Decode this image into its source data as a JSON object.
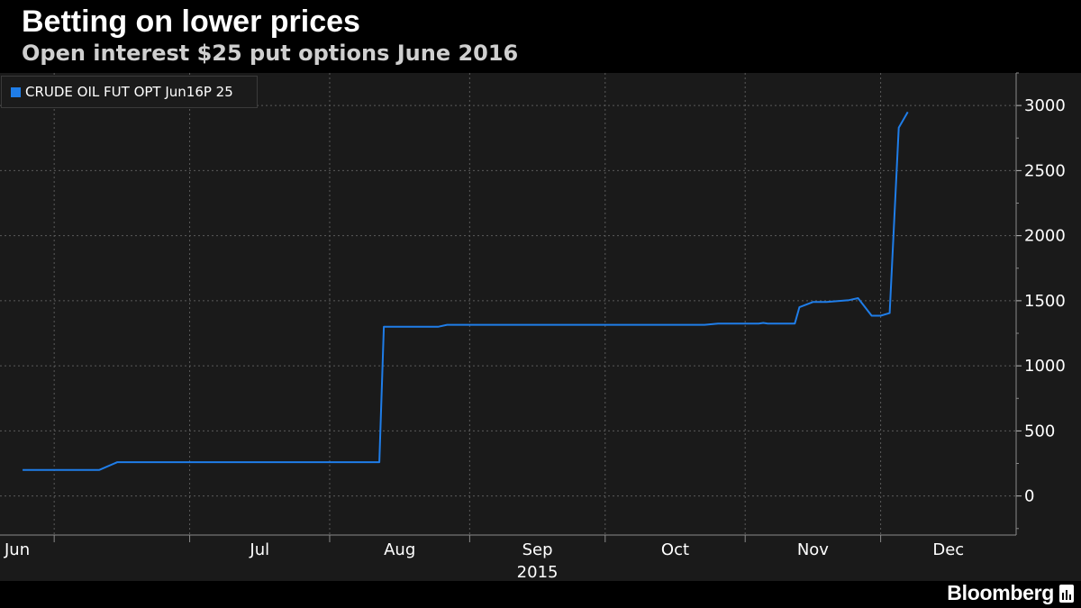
{
  "title": "Betting on lower prices",
  "subtitle": "Open interest $25 put options June 2016",
  "brand": "Bloomberg",
  "icons": {
    "brand": "bloomberg-terminal-icon"
  },
  "colors": {
    "background": "#000000",
    "plot_background": "#1a1a1a",
    "series": "#1f7de8",
    "grid": "#5a5a5a",
    "text": "#ffffff"
  },
  "chart_data": {
    "type": "line",
    "title": "Betting on lower prices",
    "subtitle": "Open interest $25 put options June 2016",
    "xlabel": "",
    "ylabel": "",
    "x_range": [
      "2015-05-20",
      "2015-12-31"
    ],
    "x_ticks": [
      {
        "label": "Jun",
        "date": "2015-06-01"
      },
      {
        "label": "Jul",
        "date": "2015-07-01"
      },
      {
        "label": "Aug",
        "date": "2015-08-01"
      },
      {
        "label": "Sep",
        "date": "2015-09-01"
      },
      {
        "label": "Oct",
        "date": "2015-10-01"
      },
      {
        "label": "Nov",
        "date": "2015-11-01"
      },
      {
        "label": "Dec",
        "date": "2015-12-01"
      }
    ],
    "year_label": "2015",
    "ylim": [
      -300,
      3250
    ],
    "y_ticks": [
      0,
      500,
      1000,
      1500,
      2000,
      2500,
      3000
    ],
    "y_axis_side": "right",
    "grid": true,
    "legend_position": "top-left",
    "series": [
      {
        "name": "CRUDE OIL FUT OPT Jun16P 25",
        "color": "#1f7de8",
        "points": [
          {
            "x": "2015-05-25",
            "y": 200
          },
          {
            "x": "2015-06-11",
            "y": 200
          },
          {
            "x": "2015-06-15",
            "y": 260
          },
          {
            "x": "2015-08-12",
            "y": 260
          },
          {
            "x": "2015-08-13",
            "y": 1300
          },
          {
            "x": "2015-08-25",
            "y": 1300
          },
          {
            "x": "2015-08-27",
            "y": 1315
          },
          {
            "x": "2015-10-23",
            "y": 1315
          },
          {
            "x": "2015-10-26",
            "y": 1325
          },
          {
            "x": "2015-11-04",
            "y": 1325
          },
          {
            "x": "2015-11-05",
            "y": 1330
          },
          {
            "x": "2015-11-06",
            "y": 1325
          },
          {
            "x": "2015-11-12",
            "y": 1325
          },
          {
            "x": "2015-11-13",
            "y": 1450
          },
          {
            "x": "2015-11-16",
            "y": 1490
          },
          {
            "x": "2015-11-19",
            "y": 1490
          },
          {
            "x": "2015-11-24",
            "y": 1505
          },
          {
            "x": "2015-11-26",
            "y": 1520
          },
          {
            "x": "2015-11-29",
            "y": 1385
          },
          {
            "x": "2015-12-01",
            "y": 1385
          },
          {
            "x": "2015-12-03",
            "y": 1405
          },
          {
            "x": "2015-12-05",
            "y": 2830
          },
          {
            "x": "2015-12-07",
            "y": 2950
          }
        ]
      }
    ]
  }
}
